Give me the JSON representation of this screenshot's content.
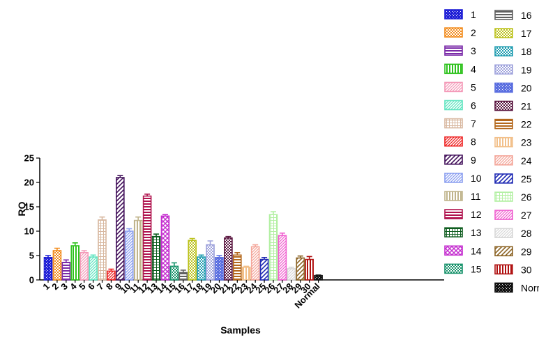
{
  "chart_data": {
    "type": "bar",
    "xlabel": "Samples",
    "ylabel": "RQ",
    "ylim": [
      0,
      25
    ],
    "yticks": [
      0,
      5,
      10,
      15,
      20,
      25
    ],
    "grid": false,
    "legend_position": "right",
    "categories": [
      "1",
      "2",
      "3",
      "4",
      "5",
      "6",
      "7",
      "8",
      "9",
      "10",
      "11",
      "12",
      "13",
      "14",
      "15",
      "16",
      "17",
      "18",
      "19",
      "20",
      "21",
      "22",
      "23",
      "24",
      "25",
      "26",
      "27",
      "28",
      "29",
      "30",
      "Normal"
    ],
    "values": [
      4.6,
      6.0,
      3.6,
      7.0,
      5.6,
      4.7,
      12.3,
      1.8,
      21.0,
      10.0,
      12.2,
      17.2,
      8.9,
      13.1,
      2.8,
      1.5,
      8.1,
      4.7,
      7.2,
      4.6,
      8.6,
      5.1,
      2.6,
      6.8,
      4.2,
      13.4,
      9.1,
      2.3,
      4.5,
      4.2,
      0.9
    ],
    "errors": [
      0.4,
      0.5,
      0.5,
      0.6,
      0.4,
      0.4,
      0.6,
      0.4,
      0.4,
      0.5,
      0.7,
      0.4,
      0.5,
      0.3,
      0.7,
      0.5,
      0.4,
      0.4,
      0.8,
      0.4,
      0.3,
      0.5,
      0.2,
      0.4,
      0.4,
      0.6,
      0.5,
      0.3,
      0.4,
      0.6,
      0.1
    ],
    "colors": [
      "#1f1fd6",
      "#f28a1a",
      "#7a2aa8",
      "#2ec21d",
      "#f49ab8",
      "#5ee4c0",
      "#d8b8a0",
      "#ee2020",
      "#44135c",
      "#8a9ef0",
      "#c0b48c",
      "#b0134e",
      "#0f5d20",
      "#c42ccf",
      "#16926a",
      "#606060",
      "#bcc21c",
      "#1f9cb0",
      "#9ea2dc",
      "#5a6ee0",
      "#5a1640",
      "#b4681c",
      "#f2c08a",
      "#f4a69a",
      "#1f2ab4",
      "#b4f0a4",
      "#f060d0",
      "#d8d8d8",
      "#8c6426",
      "#b01010",
      "#111111"
    ],
    "patterns": [
      "check",
      "dots",
      "hline",
      "vline",
      "diag",
      "diag",
      "grid",
      "diag",
      "diagw",
      "diag",
      "vline",
      "hline",
      "grid",
      "cross",
      "dots",
      "hline",
      "dots",
      "dots",
      "dots",
      "check",
      "dots",
      "hline",
      "vline",
      "diag",
      "diagw",
      "grid",
      "diag",
      "diag",
      "diagw",
      "vline",
      "check"
    ]
  }
}
